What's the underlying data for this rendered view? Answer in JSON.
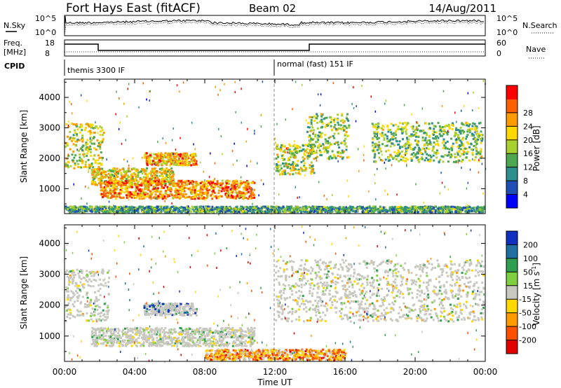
{
  "header": {
    "station": "Fort Hays East (fitACF)",
    "beam": "Beam 02",
    "date": "14/Aug/2011"
  },
  "top_panels": {
    "nsky_label": "N.Sky",
    "nsearch_label": "N.Search",
    "noise_ticks_left": [
      "10^5",
      "10^0"
    ],
    "noise_ticks_right": [
      "10^5",
      "10^0"
    ],
    "freq_label_1": "Freq.",
    "freq_label_2": "[MHz]",
    "freq_ticks": [
      "18",
      "8"
    ],
    "nave_label": "Nave",
    "nave_ticks": [
      "60",
      "0"
    ],
    "cpid_label": "CPID",
    "cpid_segments": [
      {
        "label": "themis 3300 IF",
        "start_hour": 0
      },
      {
        "label": "normal (fast) 151 IF",
        "start_hour": 12
      }
    ]
  },
  "chart_data": [
    {
      "type": "heatmap",
      "name": "power",
      "ylabel": "Slant Range [km]",
      "xlabel": "Time UT",
      "x_ticks": [
        "00:00",
        "04:00",
        "08:00",
        "12:00",
        "16:00",
        "20:00",
        "00:00"
      ],
      "xlim_hours": [
        0,
        24
      ],
      "y_ticks": [
        1000,
        2000,
        3000,
        4000
      ],
      "ylim": [
        180,
        4600
      ],
      "colorbar": {
        "label": "Power [dB]",
        "ticks": [
          4,
          8,
          12,
          16,
          20,
          24,
          28
        ],
        "range": [
          0,
          30
        ],
        "colors": [
          "#0000ff",
          "#1f4fb4",
          "#2f8f8f",
          "#4fa84f",
          "#a8d030",
          "#ffd800",
          "#ff9a00",
          "#ff6000",
          "#ff0000"
        ]
      },
      "echo_regions": [
        {
          "t": [
            0.0,
            2.2
          ],
          "r": [
            1700,
            3200
          ],
          "level": 0.55
        },
        {
          "t": [
            1.5,
            6.2
          ],
          "r": [
            1150,
            1700
          ],
          "level": 0.6
        },
        {
          "t": [
            2.0,
            10.8
          ],
          "r": [
            700,
            1300
          ],
          "level": 0.75
        },
        {
          "t": [
            4.5,
            7.5
          ],
          "r": [
            1800,
            2200
          ],
          "level": 0.7
        },
        {
          "t": [
            12.0,
            14.2
          ],
          "r": [
            1500,
            2500
          ],
          "level": 0.5
        },
        {
          "t": [
            13.8,
            16.2
          ],
          "r": [
            2000,
            3500
          ],
          "level": 0.5
        },
        {
          "t": [
            17.5,
            23.8
          ],
          "r": [
            1900,
            3200
          ],
          "level": 0.45
        },
        {
          "t": [
            0.0,
            24.0
          ],
          "r": [
            180,
            450
          ],
          "level": 0.35
        }
      ]
    },
    {
      "type": "heatmap",
      "name": "velocity",
      "ylabel": "Slant Range [km]",
      "xlabel": "Time UT",
      "x_ticks": [
        "00:00",
        "04:00",
        "08:00",
        "12:00",
        "16:00",
        "20:00",
        "00:00"
      ],
      "xlim_hours": [
        0,
        24
      ],
      "y_ticks": [
        1000,
        2000,
        3000,
        4000
      ],
      "ylim": [
        180,
        4600
      ],
      "colorbar": {
        "label": "Velocity [m s^-1]",
        "ticks": [
          200,
          100,
          50,
          15,
          -15,
          -50,
          -100,
          -200
        ],
        "colors": [
          "#1030c0",
          "#1f6f9f",
          "#2f9f4f",
          "#7fd040",
          "#c8c8c0",
          "#ffd800",
          "#ff9a00",
          "#ff5000",
          "#e00000"
        ]
      },
      "echo_regions": [
        {
          "t": [
            0.0,
            2.5
          ],
          "r": [
            1500,
            3200
          ],
          "level": 0.5
        },
        {
          "t": [
            1.5,
            10.8
          ],
          "r": [
            700,
            1300
          ],
          "level": 0.45
        },
        {
          "t": [
            4.5,
            7.5
          ],
          "r": [
            1700,
            2100
          ],
          "level": 0.1
        },
        {
          "t": [
            12.0,
            24.0
          ],
          "r": [
            1500,
            3500
          ],
          "level": 0.5
        },
        {
          "t": [
            8.0,
            16.0
          ],
          "r": [
            180,
            600
          ],
          "level": 0.7
        }
      ]
    }
  ]
}
